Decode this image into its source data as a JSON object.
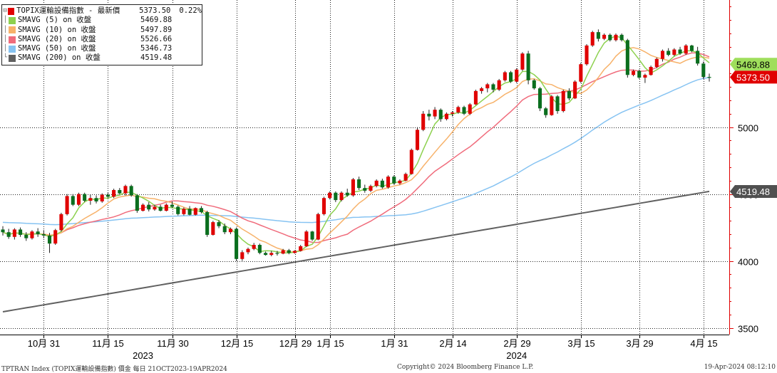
{
  "legend": [
    {
      "name": "TOPIX運輸設備指數 - 最新價",
      "value": "5373.50",
      "change": "0.22%",
      "color": "#e00000",
      "tree": "⊟"
    },
    {
      "name": "SMAVG (5)  on 收盤",
      "value": "5469.88",
      "color": "#8dd14f",
      "tree": "│"
    },
    {
      "name": "SMAVG (10)  on 收盤",
      "value": "5497.89",
      "color": "#f7b26a",
      "tree": "│"
    },
    {
      "name": "SMAVG (20)  on 收盤",
      "value": "5526.66",
      "color": "#f06c7c",
      "tree": "│"
    },
    {
      "name": "SMAVG (50)  on 收盤",
      "value": "5346.73",
      "color": "#86c3f2",
      "tree": "│"
    },
    {
      "name": "SMAVG (200)  on 收盤",
      "value": "4519.48",
      "color": "#606060",
      "tree": "└"
    }
  ],
  "footer": {
    "left": "TPTRAN Index (TOPIX運輸設備指數) 價金  每日 21OCT2023-19APR2024",
    "center": "Copyright© 2024 Bloomberg Finance L.P.",
    "right": "19-Apr-2024 08:12:10"
  },
  "chart_data": {
    "type": "candlestick",
    "ylim": [
      3450,
      5950
    ],
    "yticks": [
      3500,
      4000,
      4500,
      5000
    ],
    "x_tick_labels": [
      {
        "label": "10月 31",
        "index": 7
      },
      {
        "label": "11月 15",
        "index": 18
      },
      {
        "label": "11月 30",
        "index": 29
      },
      {
        "label": "12月 15",
        "index": 40
      },
      {
        "label": "12月 29",
        "index": 50
      },
      {
        "label": "1月 15",
        "index": 56
      },
      {
        "label": "1月 31",
        "index": 67
      },
      {
        "label": "2月 14",
        "index": 77
      },
      {
        "label": "2月 29",
        "index": 88
      },
      {
        "label": "3月 15",
        "index": 99
      },
      {
        "label": "3月 29",
        "index": 109
      },
      {
        "label": "4月 15",
        "index": 120
      }
    ],
    "year_labels": [
      {
        "label": "2023",
        "index": 24
      },
      {
        "label": "2024",
        "index": 88
      }
    ],
    "last_value_tags": [
      {
        "label": "5469.88",
        "value": 5469.88,
        "bg": "#9fde5c",
        "fg": "#000000"
      },
      {
        "label": "5373.50",
        "value": 5373.5,
        "bg": "#e00000",
        "fg": "#ffffff"
      },
      {
        "label": "4519.48",
        "value": 4519.48,
        "bg": "#505050",
        "fg": "#ffffff"
      }
    ],
    "candles": [
      {
        "o": 4235,
        "h": 4260,
        "l": 4190,
        "c": 4215
      },
      {
        "o": 4215,
        "h": 4240,
        "l": 4165,
        "c": 4180
      },
      {
        "o": 4180,
        "h": 4245,
        "l": 4160,
        "c": 4235
      },
      {
        "o": 4235,
        "h": 4250,
        "l": 4180,
        "c": 4195
      },
      {
        "o": 4195,
        "h": 4215,
        "l": 4150,
        "c": 4170
      },
      {
        "o": 4170,
        "h": 4230,
        "l": 4160,
        "c": 4220
      },
      {
        "o": 4220,
        "h": 4245,
        "l": 4180,
        "c": 4200
      },
      {
        "o": 4200,
        "h": 4230,
        "l": 4170,
        "c": 4190
      },
      {
        "o": 4190,
        "h": 4210,
        "l": 4060,
        "c": 4130
      },
      {
        "o": 4130,
        "h": 4240,
        "l": 4120,
        "c": 4230
      },
      {
        "o": 4230,
        "h": 4360,
        "l": 4220,
        "c": 4350
      },
      {
        "o": 4350,
        "h": 4500,
        "l": 4340,
        "c": 4485
      },
      {
        "o": 4485,
        "h": 4500,
        "l": 4410,
        "c": 4420
      },
      {
        "o": 4420,
        "h": 4510,
        "l": 4410,
        "c": 4500
      },
      {
        "o": 4500,
        "h": 4510,
        "l": 4440,
        "c": 4450
      },
      {
        "o": 4450,
        "h": 4495,
        "l": 4420,
        "c": 4470
      },
      {
        "o": 4470,
        "h": 4490,
        "l": 4430,
        "c": 4445
      },
      {
        "o": 4445,
        "h": 4505,
        "l": 4435,
        "c": 4495
      },
      {
        "o": 4495,
        "h": 4510,
        "l": 4470,
        "c": 4480
      },
      {
        "o": 4480,
        "h": 4540,
        "l": 4470,
        "c": 4530
      },
      {
        "o": 4530,
        "h": 4545,
        "l": 4495,
        "c": 4505
      },
      {
        "o": 4505,
        "h": 4570,
        "l": 4490,
        "c": 4560
      },
      {
        "o": 4560,
        "h": 4570,
        "l": 4480,
        "c": 4490
      },
      {
        "o": 4490,
        "h": 4500,
        "l": 4360,
        "c": 4375
      },
      {
        "o": 4375,
        "h": 4430,
        "l": 4370,
        "c": 4420
      },
      {
        "o": 4420,
        "h": 4440,
        "l": 4370,
        "c": 4385
      },
      {
        "o": 4385,
        "h": 4420,
        "l": 4375,
        "c": 4405
      },
      {
        "o": 4405,
        "h": 4420,
        "l": 4370,
        "c": 4375
      },
      {
        "o": 4375,
        "h": 4430,
        "l": 4370,
        "c": 4420
      },
      {
        "o": 4420,
        "h": 4445,
        "l": 4395,
        "c": 4405
      },
      {
        "o": 4405,
        "h": 4415,
        "l": 4340,
        "c": 4350
      },
      {
        "o": 4350,
        "h": 4400,
        "l": 4340,
        "c": 4390
      },
      {
        "o": 4390,
        "h": 4410,
        "l": 4340,
        "c": 4345
      },
      {
        "o": 4345,
        "h": 4400,
        "l": 4340,
        "c": 4395
      },
      {
        "o": 4395,
        "h": 4410,
        "l": 4355,
        "c": 4365
      },
      {
        "o": 4365,
        "h": 4375,
        "l": 4180,
        "c": 4195
      },
      {
        "o": 4195,
        "h": 4300,
        "l": 4190,
        "c": 4290
      },
      {
        "o": 4290,
        "h": 4305,
        "l": 4245,
        "c": 4260
      },
      {
        "o": 4260,
        "h": 4280,
        "l": 4200,
        "c": 4215
      },
      {
        "o": 4215,
        "h": 4250,
        "l": 4200,
        "c": 4240
      },
      {
        "o": 4240,
        "h": 4250,
        "l": 4000,
        "c": 4015
      },
      {
        "o": 4015,
        "h": 4080,
        "l": 4000,
        "c": 4065
      },
      {
        "o": 4065,
        "h": 4100,
        "l": 4050,
        "c": 4090
      },
      {
        "o": 4090,
        "h": 4135,
        "l": 4080,
        "c": 4120
      },
      {
        "o": 4120,
        "h": 4130,
        "l": 4050,
        "c": 4060
      },
      {
        "o": 4060,
        "h": 4070,
        "l": 4040,
        "c": 4045
      },
      {
        "o": 4045,
        "h": 4075,
        "l": 4035,
        "c": 4060
      },
      {
        "o": 4060,
        "h": 4075,
        "l": 4040,
        "c": 4055
      },
      {
        "o": 4055,
        "h": 4090,
        "l": 4050,
        "c": 4080
      },
      {
        "o": 4080,
        "h": 4090,
        "l": 4050,
        "c": 4060
      },
      {
        "o": 4060,
        "h": 4080,
        "l": 4055,
        "c": 4075
      },
      {
        "o": 4075,
        "h": 4120,
        "l": 4070,
        "c": 4110
      },
      {
        "o": 4110,
        "h": 4230,
        "l": 4105,
        "c": 4220
      },
      {
        "o": 4220,
        "h": 4225,
        "l": 4150,
        "c": 4160
      },
      {
        "o": 4160,
        "h": 4360,
        "l": 4155,
        "c": 4350
      },
      {
        "o": 4350,
        "h": 4480,
        "l": 4340,
        "c": 4470
      },
      {
        "o": 4470,
        "h": 4520,
        "l": 4460,
        "c": 4510
      },
      {
        "o": 4510,
        "h": 4520,
        "l": 4440,
        "c": 4455
      },
      {
        "o": 4455,
        "h": 4520,
        "l": 4445,
        "c": 4510
      },
      {
        "o": 4510,
        "h": 4540,
        "l": 4480,
        "c": 4490
      },
      {
        "o": 4490,
        "h": 4620,
        "l": 4480,
        "c": 4610
      },
      {
        "o": 4610,
        "h": 4630,
        "l": 4530,
        "c": 4545
      },
      {
        "o": 4545,
        "h": 4570,
        "l": 4510,
        "c": 4525
      },
      {
        "o": 4525,
        "h": 4570,
        "l": 4515,
        "c": 4560
      },
      {
        "o": 4560,
        "h": 4610,
        "l": 4550,
        "c": 4600
      },
      {
        "o": 4600,
        "h": 4615,
        "l": 4540,
        "c": 4550
      },
      {
        "o": 4550,
        "h": 4640,
        "l": 4540,
        "c": 4630
      },
      {
        "o": 4630,
        "h": 4640,
        "l": 4570,
        "c": 4580
      },
      {
        "o": 4580,
        "h": 4610,
        "l": 4570,
        "c": 4600
      },
      {
        "o": 4600,
        "h": 4660,
        "l": 4595,
        "c": 4650
      },
      {
        "o": 4650,
        "h": 4840,
        "l": 4645,
        "c": 4830
      },
      {
        "o": 4830,
        "h": 5000,
        "l": 4825,
        "c": 4980
      },
      {
        "o": 4980,
        "h": 5120,
        "l": 4970,
        "c": 5100
      },
      {
        "o": 5100,
        "h": 5130,
        "l": 5050,
        "c": 5080
      },
      {
        "o": 5080,
        "h": 5150,
        "l": 5060,
        "c": 5130
      },
      {
        "o": 5130,
        "h": 5140,
        "l": 5040,
        "c": 5060
      },
      {
        "o": 5060,
        "h": 5110,
        "l": 5050,
        "c": 5100
      },
      {
        "o": 5100,
        "h": 5120,
        "l": 5080,
        "c": 5110
      },
      {
        "o": 5110,
        "h": 5160,
        "l": 5100,
        "c": 5150
      },
      {
        "o": 5150,
        "h": 5160,
        "l": 5090,
        "c": 5100
      },
      {
        "o": 5100,
        "h": 5180,
        "l": 5090,
        "c": 5170
      },
      {
        "o": 5170,
        "h": 5280,
        "l": 5165,
        "c": 5270
      },
      {
        "o": 5270,
        "h": 5300,
        "l": 5250,
        "c": 5290
      },
      {
        "o": 5290,
        "h": 5330,
        "l": 5260,
        "c": 5320
      },
      {
        "o": 5320,
        "h": 5330,
        "l": 5260,
        "c": 5280
      },
      {
        "o": 5280,
        "h": 5360,
        "l": 5270,
        "c": 5350
      },
      {
        "o": 5350,
        "h": 5420,
        "l": 5340,
        "c": 5410
      },
      {
        "o": 5410,
        "h": 5420,
        "l": 5330,
        "c": 5340
      },
      {
        "o": 5340,
        "h": 5440,
        "l": 5330,
        "c": 5430
      },
      {
        "o": 5430,
        "h": 5560,
        "l": 5420,
        "c": 5550
      },
      {
        "o": 5550,
        "h": 5570,
        "l": 5320,
        "c": 5350
      },
      {
        "o": 5350,
        "h": 5360,
        "l": 5280,
        "c": 5290
      },
      {
        "o": 5290,
        "h": 5300,
        "l": 5120,
        "c": 5140
      },
      {
        "o": 5140,
        "h": 5150,
        "l": 5070,
        "c": 5090
      },
      {
        "o": 5090,
        "h": 5240,
        "l": 5085,
        "c": 5230
      },
      {
        "o": 5230,
        "h": 5240,
        "l": 5100,
        "c": 5120
      },
      {
        "o": 5120,
        "h": 5280,
        "l": 5110,
        "c": 5270
      },
      {
        "o": 5270,
        "h": 5290,
        "l": 5200,
        "c": 5215
      },
      {
        "o": 5215,
        "h": 5350,
        "l": 5210,
        "c": 5340
      },
      {
        "o": 5340,
        "h": 5480,
        "l": 5330,
        "c": 5470
      },
      {
        "o": 5470,
        "h": 5620,
        "l": 5460,
        "c": 5610
      },
      {
        "o": 5610,
        "h": 5720,
        "l": 5600,
        "c": 5710
      },
      {
        "o": 5710,
        "h": 5730,
        "l": 5640,
        "c": 5660
      },
      {
        "o": 5660,
        "h": 5700,
        "l": 5650,
        "c": 5690
      },
      {
        "o": 5690,
        "h": 5700,
        "l": 5640,
        "c": 5650
      },
      {
        "o": 5650,
        "h": 5700,
        "l": 5640,
        "c": 5690
      },
      {
        "o": 5690,
        "h": 5700,
        "l": 5640,
        "c": 5650
      },
      {
        "o": 5650,
        "h": 5660,
        "l": 5370,
        "c": 5390
      },
      {
        "o": 5390,
        "h": 5430,
        "l": 5380,
        "c": 5420
      },
      {
        "o": 5420,
        "h": 5430,
        "l": 5360,
        "c": 5370
      },
      {
        "o": 5370,
        "h": 5400,
        "l": 5330,
        "c": 5390
      },
      {
        "o": 5390,
        "h": 5460,
        "l": 5385,
        "c": 5450
      },
      {
        "o": 5450,
        "h": 5520,
        "l": 5440,
        "c": 5510
      },
      {
        "o": 5510,
        "h": 5580,
        "l": 5490,
        "c": 5570
      },
      {
        "o": 5570,
        "h": 5590,
        "l": 5530,
        "c": 5540
      },
      {
        "o": 5540,
        "h": 5590,
        "l": 5530,
        "c": 5580
      },
      {
        "o": 5580,
        "h": 5600,
        "l": 5540,
        "c": 5550
      },
      {
        "o": 5550,
        "h": 5620,
        "l": 5540,
        "c": 5610
      },
      {
        "o": 5610,
        "h": 5615,
        "l": 5560,
        "c": 5570
      },
      {
        "o": 5570,
        "h": 5600,
        "l": 5460,
        "c": 5475
      },
      {
        "o": 5475,
        "h": 5490,
        "l": 5360,
        "c": 5375
      },
      {
        "o": 5375,
        "h": 5400,
        "l": 5340,
        "c": 5373.5
      }
    ]
  }
}
